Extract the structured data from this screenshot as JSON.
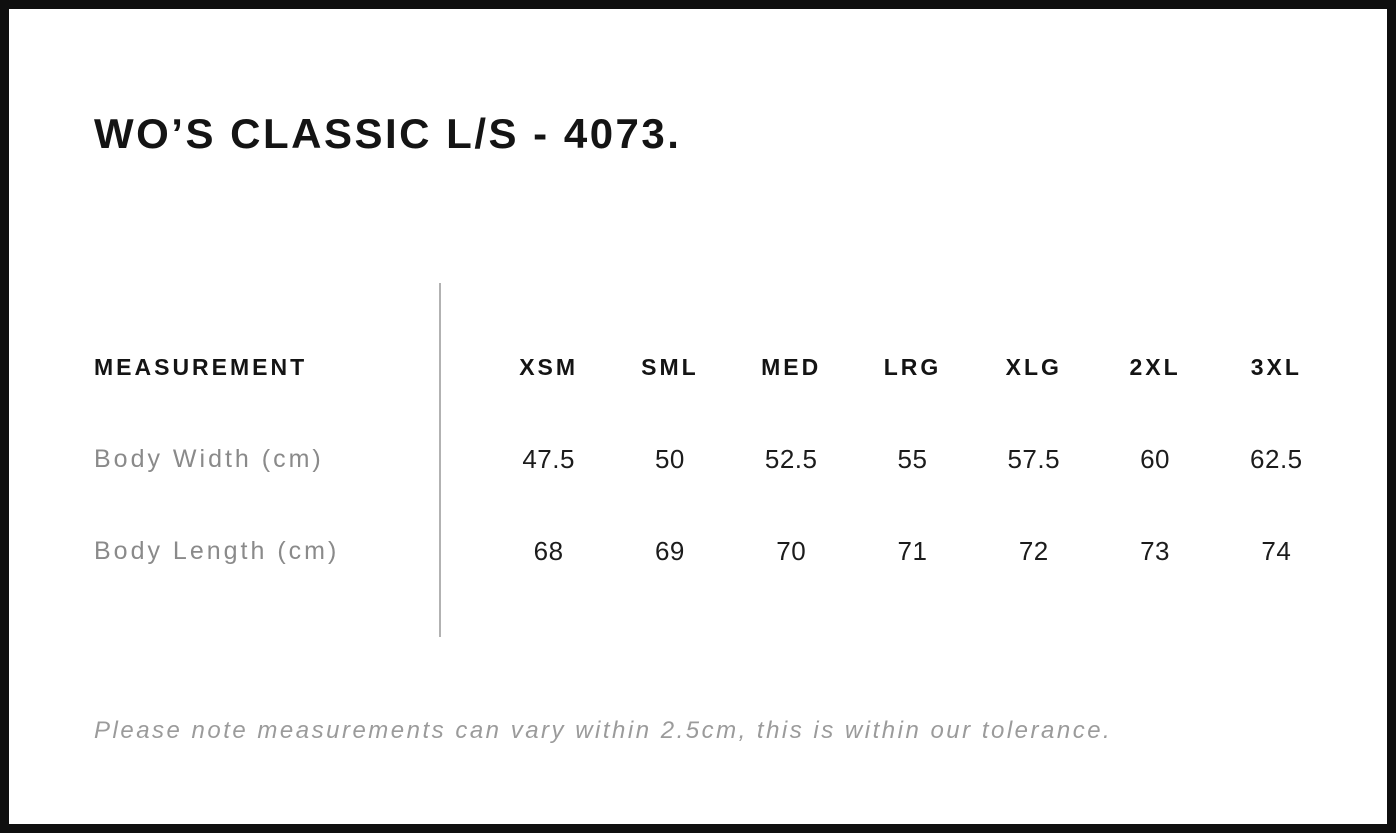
{
  "page": {
    "title": "WO’S CLASSIC L/S - 4073.",
    "footer_note": "Please note measurements can vary within 2.5cm, this is within our tolerance."
  },
  "size_chart": {
    "measurement_header": "MEASUREMENT",
    "size_headers": [
      "XSM",
      "SML",
      "MED",
      "LRG",
      "XLG",
      "2XL",
      "3XL"
    ],
    "rows": [
      {
        "label": "Body Width (cm)",
        "values": [
          "47.5",
          "50",
          "52.5",
          "55",
          "57.5",
          "60",
          "62.5"
        ]
      },
      {
        "label": "Body Length (cm)",
        "values": [
          "68",
          "69",
          "70",
          "71",
          "72",
          "73",
          "74"
        ]
      }
    ]
  },
  "chart_data": {
    "type": "table",
    "title": "WO’S CLASSIC L/S - 4073.",
    "columns": [
      "MEASUREMENT",
      "XSM",
      "SML",
      "MED",
      "LRG",
      "XLG",
      "2XL",
      "3XL"
    ],
    "rows": [
      [
        "Body Width (cm)",
        47.5,
        50,
        52.5,
        55,
        57.5,
        60,
        62.5
      ],
      [
        "Body Length (cm)",
        68,
        69,
        70,
        71,
        72,
        73,
        74
      ]
    ],
    "note": "Please note measurements can vary within 2.5cm, this is within our tolerance."
  },
  "colors": {
    "background": "#ffffff",
    "frame_border": "#0f0f0f",
    "heading_text": "#141414",
    "label_text": "#8a8a8a",
    "value_text": "#1c1c1c",
    "divider": "#b2b2b2",
    "note_text": "#9b9b9b"
  }
}
